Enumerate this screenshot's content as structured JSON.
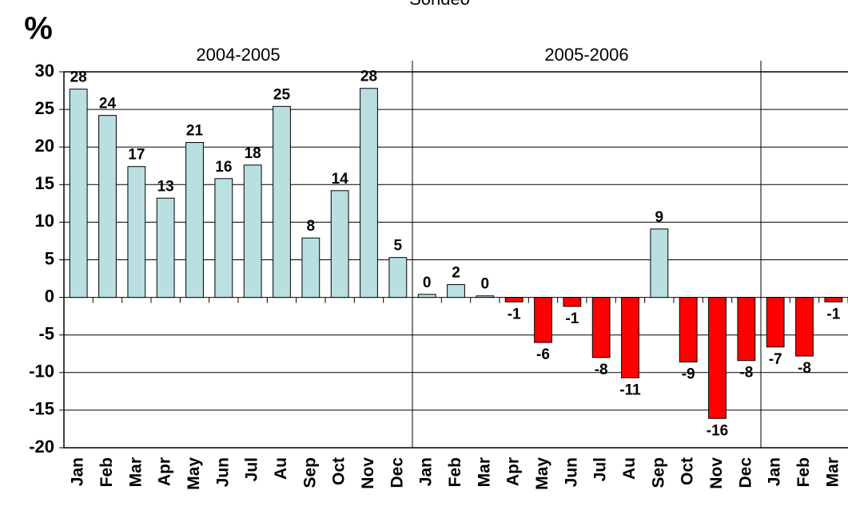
{
  "chart_data": {
    "type": "bar",
    "title": "Sondeo",
    "y_label": "%",
    "categories": [
      "Jan",
      "Feb",
      "Mar",
      "Apr",
      "May",
      "Jun",
      "Jul",
      "Au",
      "Sep",
      "Oct",
      "Nov",
      "Dec",
      "Jan",
      "Feb",
      "Mar",
      "Apr",
      "May",
      "Jun",
      "Jul",
      "Au",
      "Sep",
      "Oct",
      "Nov",
      "Dec",
      "Jan",
      "Feb",
      "Mar"
    ],
    "values": [
      27.7,
      24.2,
      17.4,
      13.2,
      20.6,
      15.8,
      17.6,
      25.4,
      7.9,
      14.2,
      27.8,
      5.3,
      0.4,
      1.7,
      0.2,
      -0.6,
      -6,
      -1.2,
      -8,
      -10.7,
      9.1,
      -8.6,
      -16.1,
      -8.4,
      -6.6,
      -7.8,
      -0.6
    ],
    "value_labels": [
      "28",
      "24",
      "17",
      "13",
      "21",
      "16",
      "18",
      "25",
      "8",
      "14",
      "28",
      "5",
      "0",
      "2",
      "0",
      "-1",
      "-6",
      "-1",
      "-8",
      "-11",
      "9",
      "-9",
      "-16",
      "-8",
      "-7",
      "-8",
      "-1"
    ],
    "groups": [
      {
        "label": "2004-2005",
        "count": 12
      },
      {
        "label": "2005-2006",
        "count": 12
      },
      {
        "count": 3
      }
    ],
    "positive_color": "#b9dfe1",
    "negative_color": "#ff0000",
    "ylim": [
      -20,
      30
    ],
    "yticks": [
      -20,
      -15,
      -10,
      -5,
      0,
      5,
      10,
      15,
      20,
      25,
      30
    ],
    "grid": true
  }
}
